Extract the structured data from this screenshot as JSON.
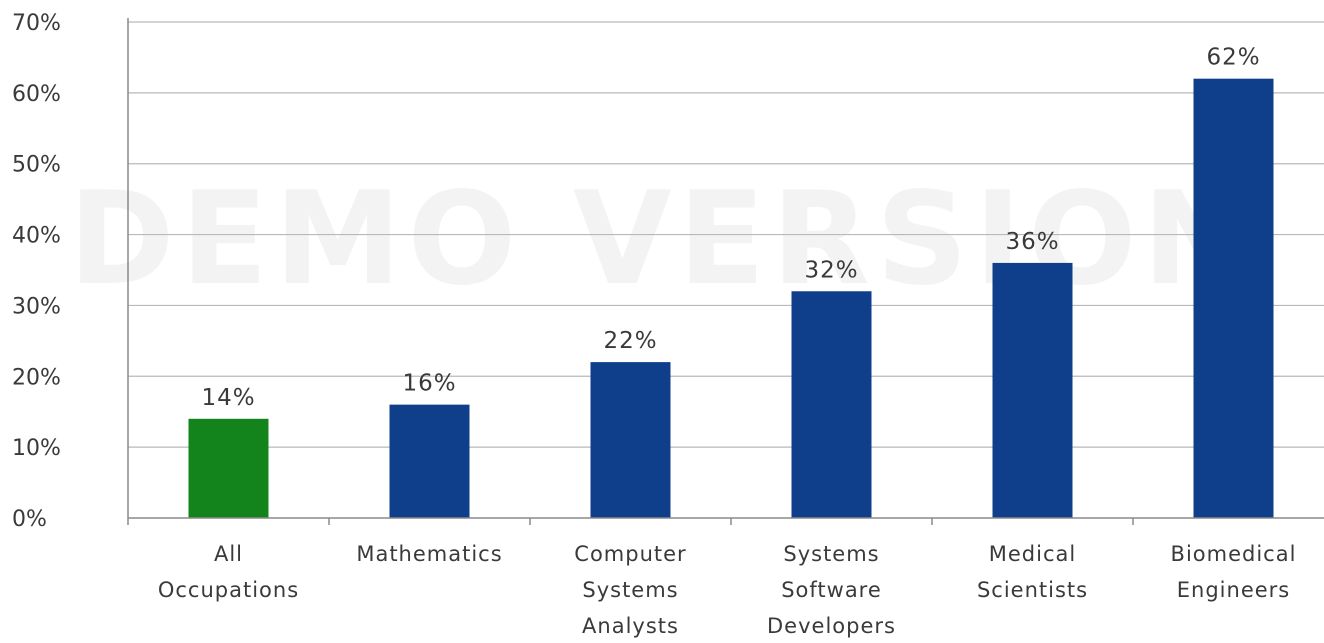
{
  "watermark": "DEMO VERSION",
  "colors": {
    "highlight": "#12841b",
    "bar": "#0f3f8a",
    "grid": "#b9b9b9",
    "text": "#3a3a3a"
  },
  "chart_data": {
    "type": "bar",
    "title": "",
    "xlabel": "",
    "ylabel": "",
    "ylim": [
      0,
      70
    ],
    "yticks": [
      0,
      10,
      20,
      30,
      40,
      50,
      60,
      70
    ],
    "ytick_labels": [
      "0%",
      "10%",
      "20%",
      "30%",
      "40%",
      "50%",
      "60%",
      "70%"
    ],
    "categories": [
      [
        "All",
        "Occupations"
      ],
      [
        "Mathematics"
      ],
      [
        "Computer",
        "Systems",
        "Analysts"
      ],
      [
        "Systems",
        "Software",
        "Developers"
      ],
      [
        "Medical",
        "Scientists"
      ],
      [
        "Biomedical",
        "Engineers"
      ]
    ],
    "values": [
      14,
      16,
      22,
      32,
      36,
      62
    ],
    "value_labels": [
      "14%",
      "16%",
      "22%",
      "32%",
      "36%",
      "62%"
    ],
    "bar_colors": [
      "#12841b",
      "#0f3f8a",
      "#0f3f8a",
      "#0f3f8a",
      "#0f3f8a",
      "#0f3f8a"
    ],
    "grid": true,
    "legend": "none"
  }
}
